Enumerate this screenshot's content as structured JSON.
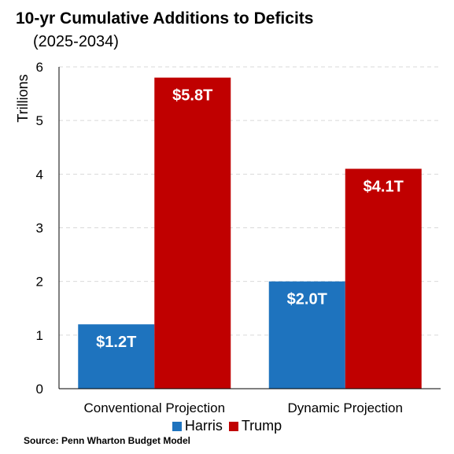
{
  "title": "10-yr Cumulative Additions to Deficits",
  "subtitle": "(2025-2034)",
  "source": "Source: Penn Wharton Budget Model",
  "colors": {
    "harris": "#1E73BE",
    "trump": "#C00000",
    "grid": "#d9d9d9",
    "axis": "#000000"
  },
  "chart_data": {
    "type": "bar",
    "ylabel": "Trillions",
    "ylim": [
      0,
      6
    ],
    "yticks": [
      "0",
      "1",
      "2",
      "3",
      "4",
      "5",
      "6"
    ],
    "categories": [
      "Conventional Projection",
      "Dynamic Projection"
    ],
    "series": [
      {
        "name": "Harris",
        "values": [
          1.2,
          2.0
        ],
        "labels": [
          "$1.2T",
          "$2.0T"
        ],
        "color": "#1E73BE"
      },
      {
        "name": "Trump",
        "values": [
          5.8,
          4.1
        ],
        "labels": [
          "$5.8T",
          "$4.1T"
        ],
        "color": "#C00000"
      }
    ],
    "legend_position": "bottom",
    "grid": true
  }
}
